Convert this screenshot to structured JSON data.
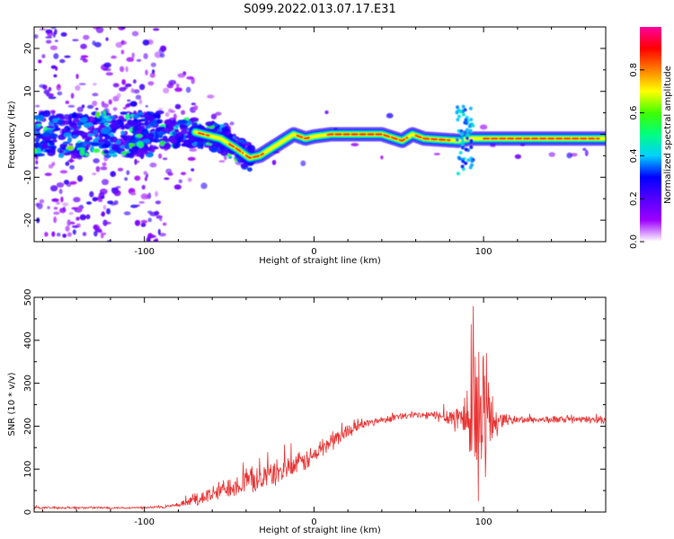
{
  "figure": {
    "title": "S099.2022.013.07.17.E31"
  },
  "chart_data": [
    {
      "type": "heatmap",
      "xlabel": "Height of straight line (km)",
      "ylabel": "Frequency (Hz)",
      "xlim": [
        -165,
        172
      ],
      "ylim": [
        -25,
        25
      ],
      "xticks": [
        -100,
        0,
        100
      ],
      "yticks": [
        -20,
        -10,
        0,
        10,
        20
      ],
      "grid": false,
      "colorbar": {
        "label": "Normalized spectral amplitude",
        "range": [
          0,
          1
        ],
        "ticks": [
          "0.0",
          "0.2",
          "0.4",
          "0.6",
          "0.8"
        ],
        "colormap": [
          "#ffffff",
          "#9d00ff",
          "#5500ff",
          "#0000ff",
          "#00d0ff",
          "#00ff80",
          "#40ff00",
          "#ffff00",
          "#ff8000",
          "#ff0000",
          "#ff00a0"
        ]
      },
      "ridge_center_hz": {
        "height_km": [
          -165,
          -100,
          -70,
          -55,
          -45,
          -38,
          -32,
          -20,
          -12,
          -5,
          0,
          10,
          40,
          52,
          58,
          65,
          85,
          92,
          96,
          100,
          172
        ],
        "frequency_hz": [
          0,
          0,
          0.5,
          -1,
          -3.5,
          -5.5,
          -5,
          -2,
          0,
          -1,
          -0.5,
          0,
          0,
          -1.5,
          0,
          -1,
          -1.5,
          -1,
          -1,
          -1,
          -1
        ]
      }
    },
    {
      "type": "line",
      "xlabel": "Height of straight line (km)",
      "ylabel": "SNR (10 * v/v)",
      "xlim": [
        -165,
        172
      ],
      "ylim": [
        0,
        500
      ],
      "xticks": [
        -100,
        0,
        100
      ],
      "yticks": [
        0,
        100,
        200,
        300,
        400,
        500
      ],
      "grid": false,
      "series": [
        {
          "color": "#e83030",
          "envelope_x": [
            -165,
            -100,
            -90,
            -80,
            -70,
            -60,
            -50,
            -40,
            -30,
            -20,
            -10,
            0,
            5,
            10,
            15,
            20,
            30,
            40,
            50,
            60,
            70,
            80,
            85,
            90,
            95,
            100,
            105,
            110,
            120,
            140,
            160,
            172
          ],
          "envelope_y": [
            10,
            10,
            12,
            15,
            30,
            40,
            60,
            70,
            80,
            95,
            110,
            130,
            150,
            165,
            175,
            190,
            205,
            215,
            222,
            225,
            225,
            222,
            220,
            220,
            220,
            220,
            215,
            215,
            215,
            215,
            215,
            215
          ],
          "noise_amplitude": [
            3,
            3,
            4,
            5,
            20,
            25,
            30,
            35,
            35,
            35,
            30,
            30,
            30,
            28,
            25,
            18,
            12,
            10,
            10,
            10,
            12,
            25,
            45,
            90,
            200,
            200,
            80,
            20,
            10,
            10,
            10,
            10
          ]
        }
      ]
    }
  ]
}
